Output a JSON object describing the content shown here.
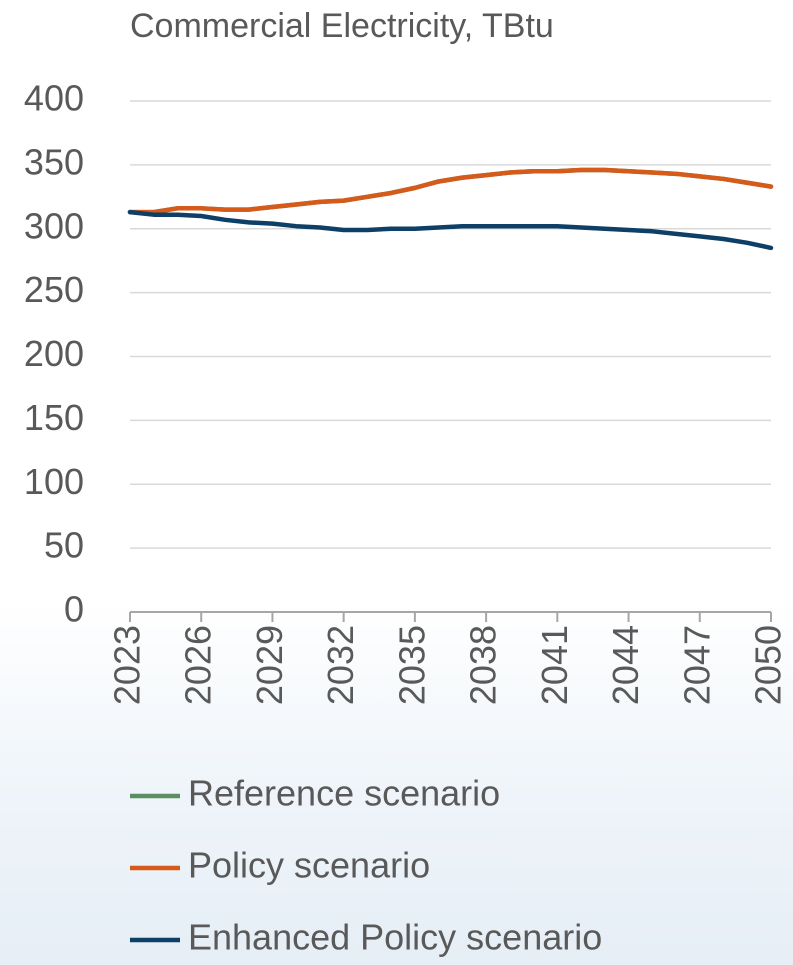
{
  "chart_data": {
    "type": "line",
    "title": "Commercial Electricity, TBtu",
    "x": [
      2023,
      2024,
      2025,
      2026,
      2027,
      2028,
      2029,
      2030,
      2031,
      2032,
      2033,
      2034,
      2035,
      2036,
      2037,
      2038,
      2039,
      2040,
      2041,
      2042,
      2043,
      2044,
      2045,
      2046,
      2047,
      2048,
      2049,
      2050
    ],
    "series": [
      {
        "name": "Reference scenario",
        "color": "#5b8f5f",
        "values": [
          313,
          313,
          316,
          316,
          315,
          315,
          317,
          319,
          321,
          322,
          325,
          328,
          332,
          337,
          340,
          342,
          344,
          345,
          345,
          346,
          346,
          345,
          344,
          343,
          341,
          339,
          336,
          333
        ]
      },
      {
        "name": "Policy scenario",
        "color": "#d65a1a",
        "values": [
          313,
          313,
          316,
          316,
          315,
          315,
          317,
          319,
          321,
          322,
          325,
          328,
          332,
          337,
          340,
          342,
          344,
          345,
          345,
          346,
          346,
          345,
          344,
          343,
          341,
          339,
          336,
          333
        ]
      },
      {
        "name": "Enhanced Policy scenario",
        "color": "#0e3f66",
        "values": [
          313,
          311,
          311,
          310,
          307,
          305,
          304,
          302,
          301,
          299,
          299,
          300,
          300,
          301,
          302,
          302,
          302,
          302,
          302,
          301,
          300,
          299,
          298,
          296,
          294,
          292,
          289,
          285
        ]
      }
    ],
    "xlim": [
      2023,
      2050
    ],
    "xticks": [
      2023,
      2026,
      2029,
      2032,
      2035,
      2038,
      2041,
      2044,
      2047,
      2050
    ],
    "ylim": [
      0,
      400
    ],
    "yticks": [
      0,
      50,
      100,
      150,
      200,
      250,
      300,
      350,
      400
    ],
    "grid": true,
    "legend": "bottom"
  }
}
